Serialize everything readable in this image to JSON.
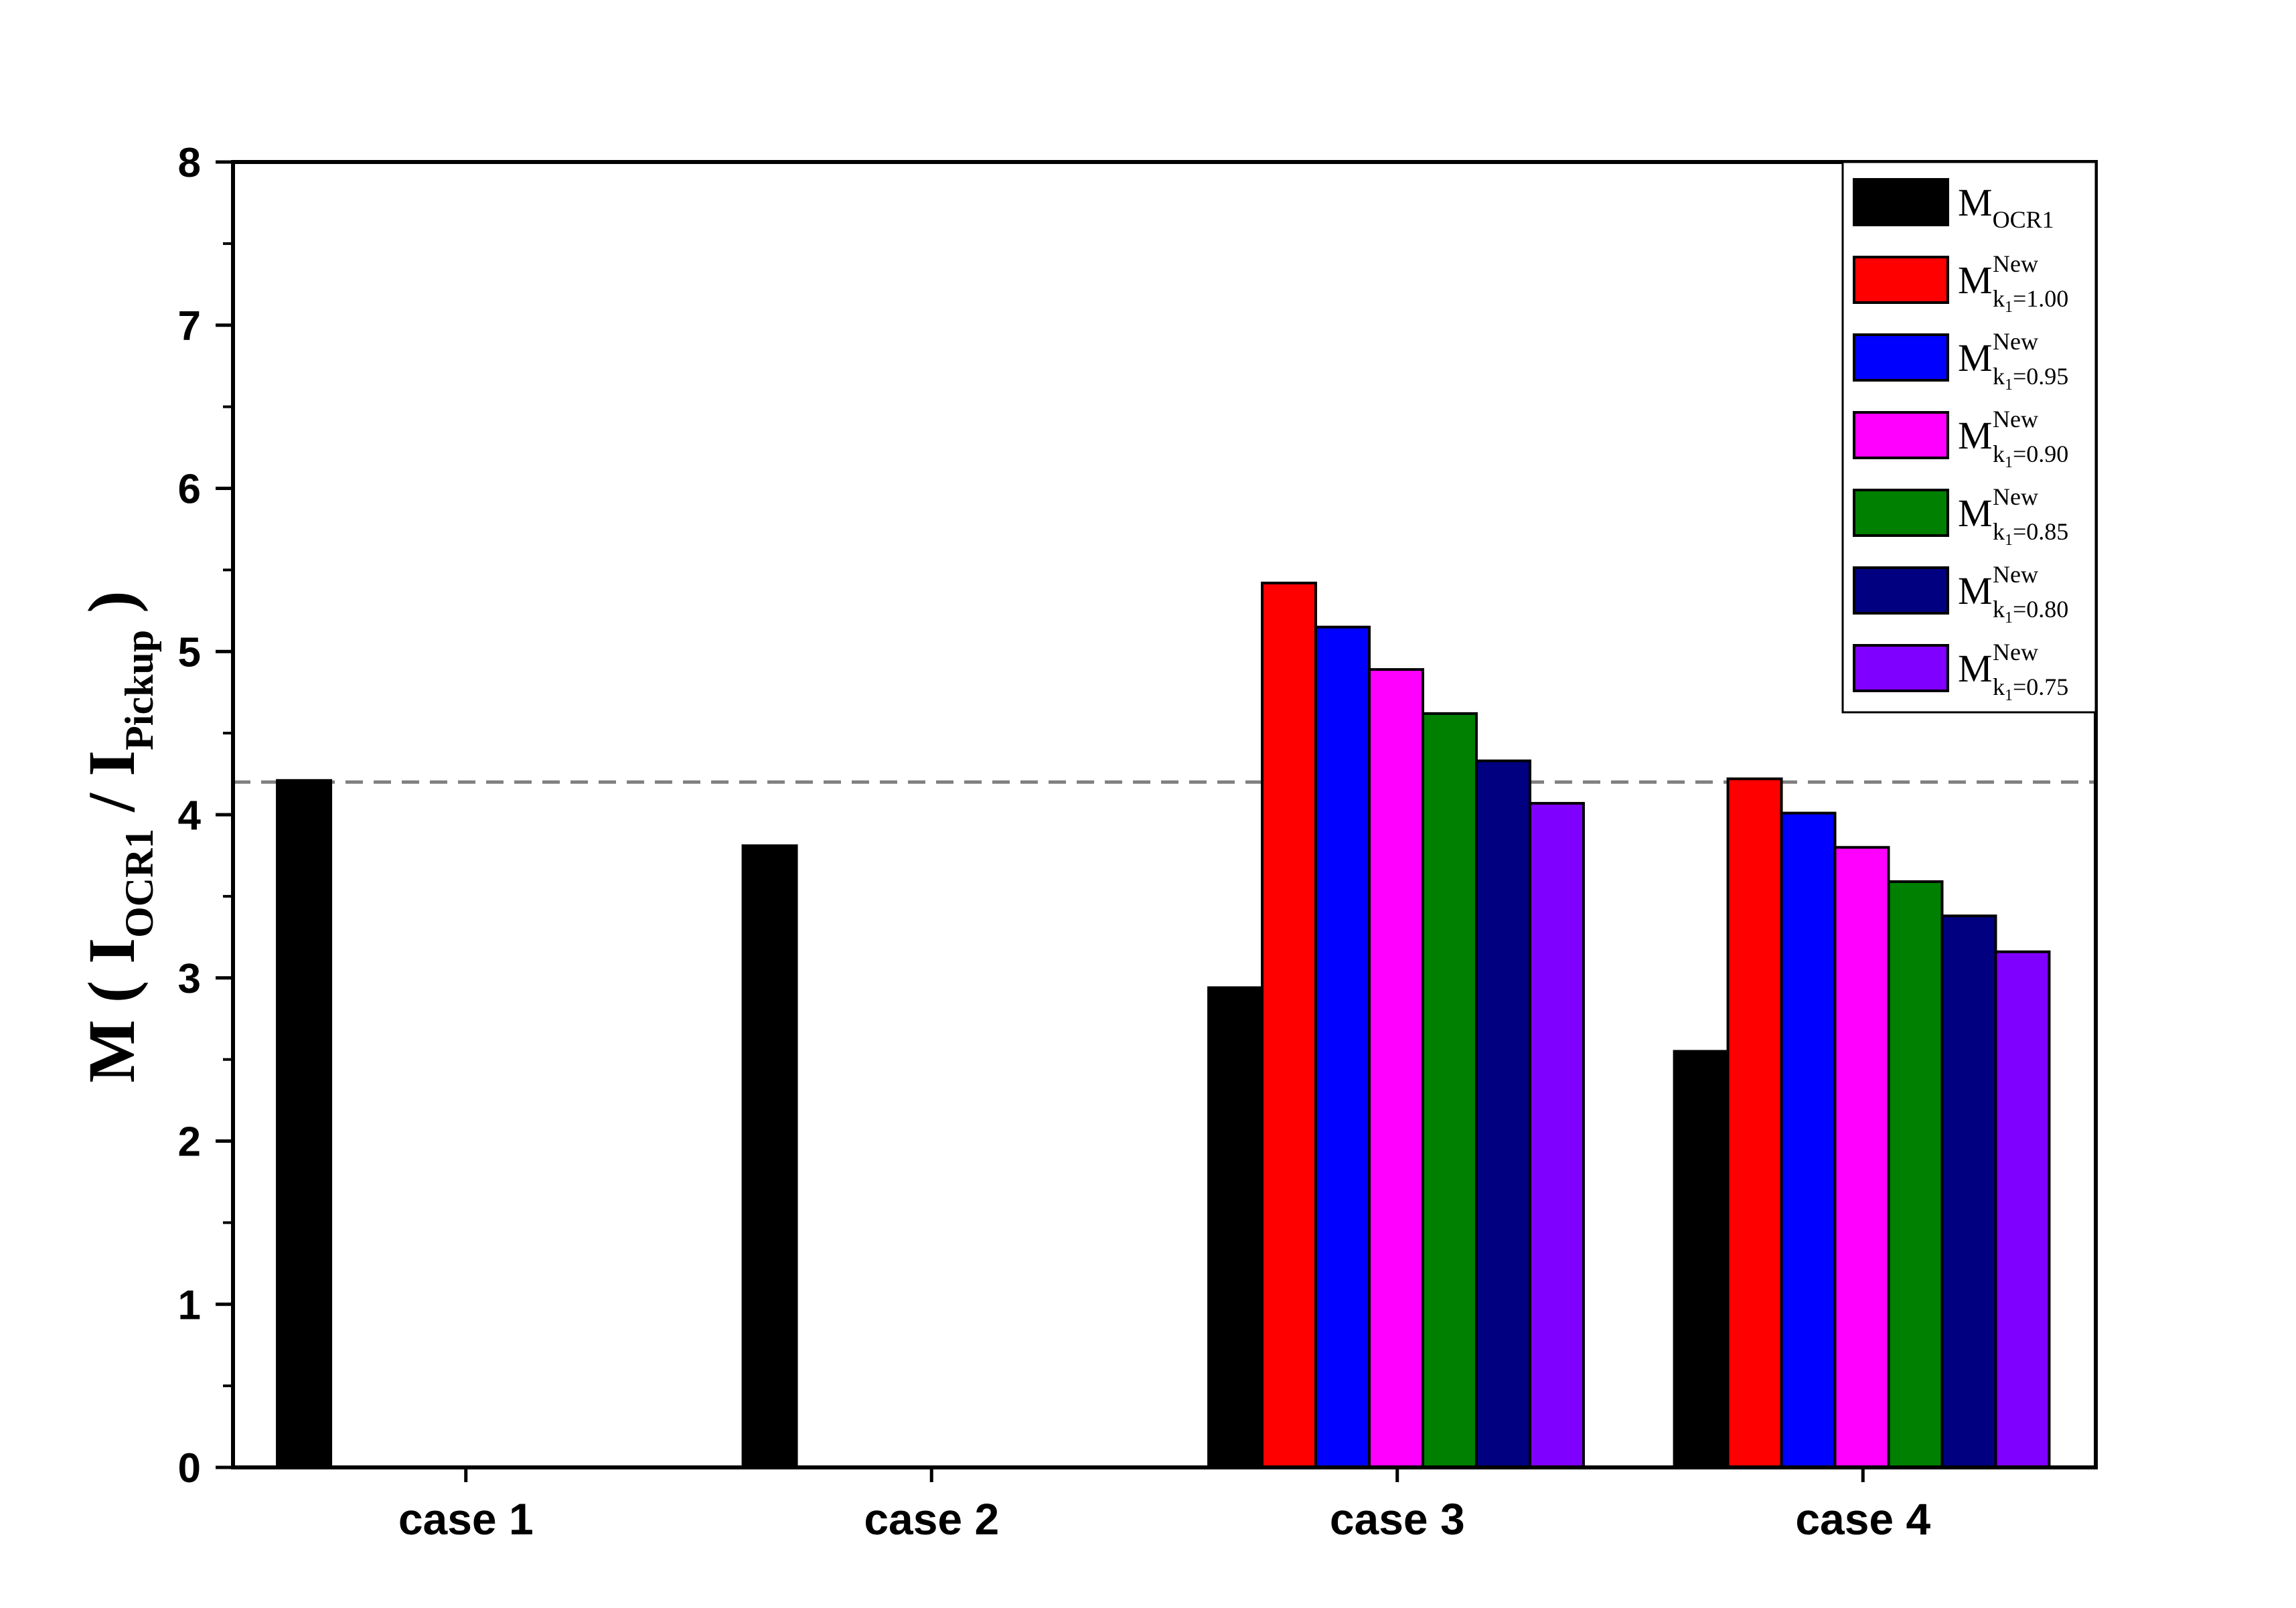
{
  "chart_data": {
    "type": "bar",
    "title": "",
    "xlabel": "",
    "ylabel": {
      "prefix": "M ( I",
      "sub1": "OCR1",
      "middle": " / I",
      "sub2": "Pickup",
      "suffix": " )"
    },
    "ylim": [
      0,
      8
    ],
    "yticks": [
      "0",
      "1",
      "2",
      "3",
      "4",
      "5",
      "6",
      "7",
      "8"
    ],
    "categories": [
      "case 1",
      "case 2",
      "case 3",
      "case 4"
    ],
    "reference_line": {
      "value": 4.2,
      "style": "dashed",
      "color": "#808080"
    },
    "legend_position": "top-right",
    "series": [
      {
        "name": "M",
        "sub": "OCR1",
        "sup": "",
        "color": "#000000",
        "values": [
          4.21,
          3.81,
          2.94,
          2.55
        ]
      },
      {
        "name": "M",
        "sub": "k",
        "sub2": "1",
        "eq": "=1.00",
        "sup": "New",
        "color": "#ff0000",
        "values": [
          null,
          null,
          5.42,
          4.22
        ]
      },
      {
        "name": "M",
        "sub": "k",
        "sub2": "1",
        "eq": "=0.95",
        "sup": "New",
        "color": "#0000ff",
        "values": [
          null,
          null,
          5.15,
          4.01
        ]
      },
      {
        "name": "M",
        "sub": "k",
        "sub2": "1",
        "eq": "=0.90",
        "sup": "New",
        "color": "#ff00ff",
        "values": [
          null,
          null,
          4.89,
          3.8
        ]
      },
      {
        "name": "M",
        "sub": "k",
        "sub2": "1",
        "eq": "=0.85",
        "sup": "New",
        "color": "#008000",
        "values": [
          null,
          null,
          4.62,
          3.59
        ]
      },
      {
        "name": "M",
        "sub": "k",
        "sub2": "1",
        "eq": "=0.80",
        "sup": "New",
        "color": "#000080",
        "values": [
          null,
          null,
          4.33,
          3.38
        ]
      },
      {
        "name": "M",
        "sub": "k",
        "sub2": "1",
        "eq": "=0.75",
        "sup": "New",
        "color": "#8000ff",
        "values": [
          null,
          null,
          4.07,
          3.16
        ]
      }
    ]
  }
}
